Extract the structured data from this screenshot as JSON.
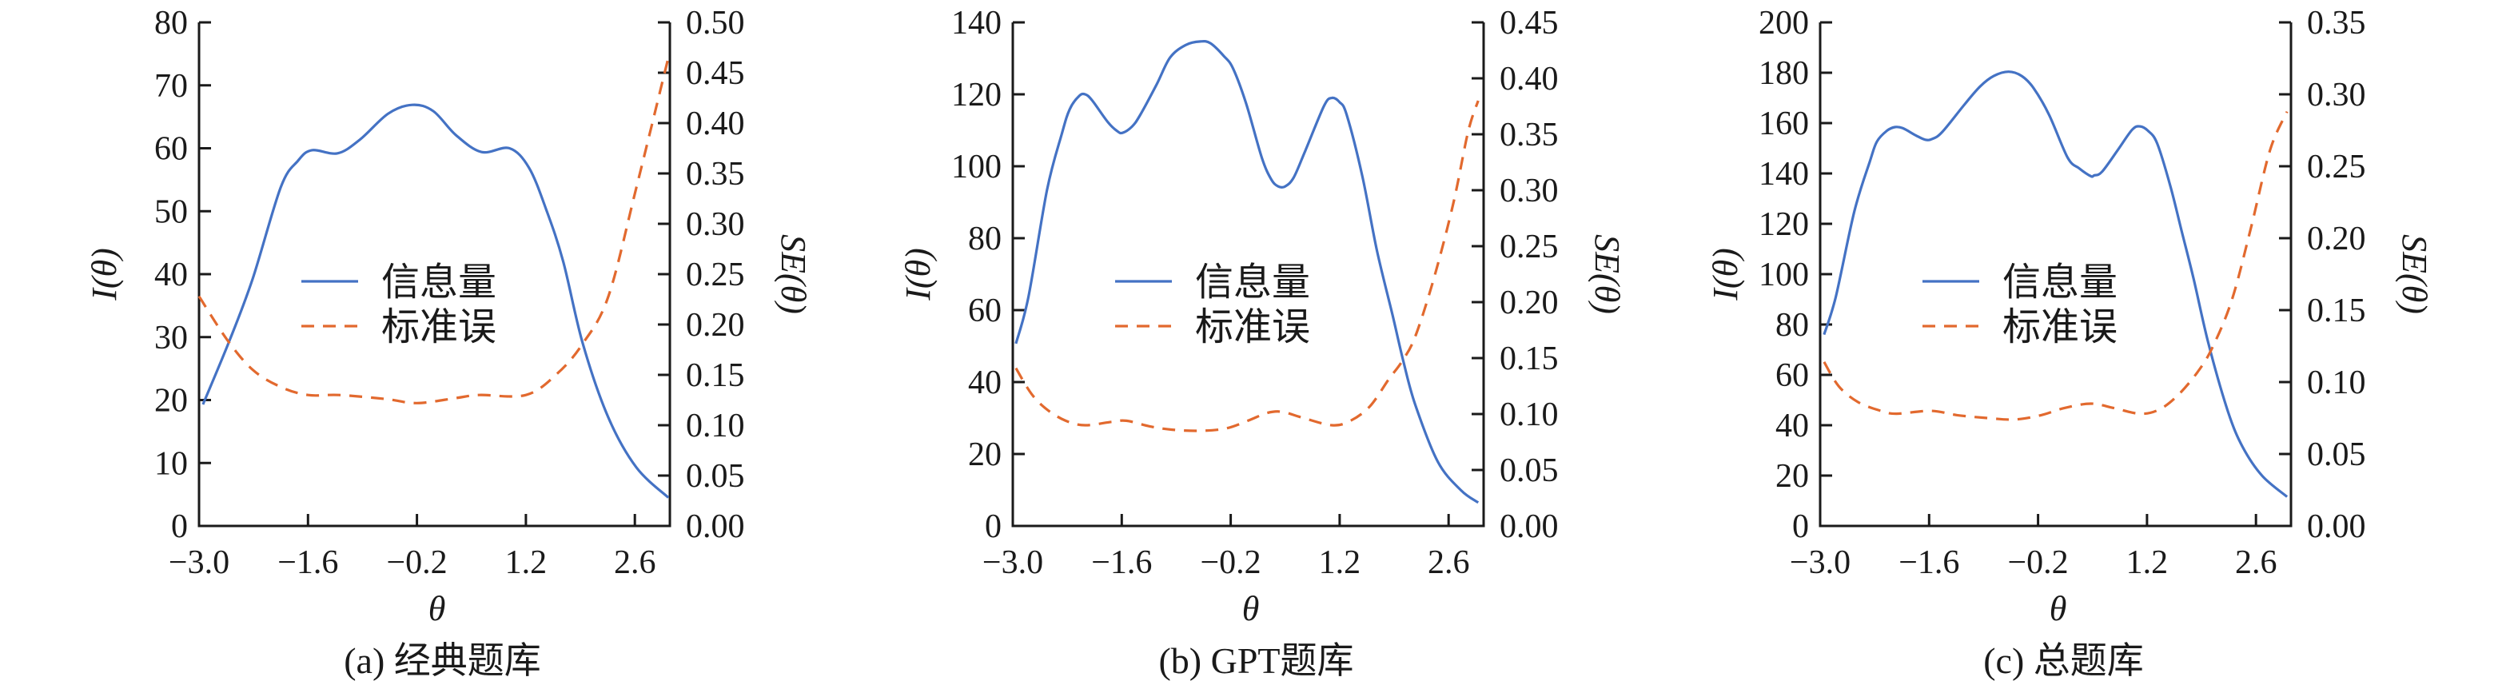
{
  "colors": {
    "info": "#4472C4",
    "se": "#E2692E",
    "axis": "#1a1a1a"
  },
  "chart_data": [
    {
      "type": "line",
      "caption": "(a) 经典题库",
      "xlabel": "θ",
      "ylabel": "I(θ)",
      "y2label": "SE(θ)",
      "xlim": [
        -3.0,
        3.05
      ],
      "ylim": [
        0,
        80
      ],
      "y2lim": [
        0,
        0.5
      ],
      "xticks": [
        -3.0,
        -1.6,
        -0.2,
        1.2,
        2.6
      ],
      "xtick_labels": [
        "−3.0",
        "−1.6",
        "−0.2",
        "1.2",
        "2.6"
      ],
      "yticks": [
        0,
        10,
        20,
        30,
        40,
        50,
        60,
        70,
        80
      ],
      "ytick_labels": [
        "0",
        "10",
        "20",
        "30",
        "40",
        "50",
        "60",
        "70",
        "80"
      ],
      "y2ticks": [
        0,
        0.05,
        0.1,
        0.15,
        0.2,
        0.25,
        0.3,
        0.35,
        0.4,
        0.45,
        0.5
      ],
      "y2tick_labels": [
        "0.00",
        "0.05",
        "0.10",
        "0.15",
        "0.20",
        "0.25",
        "0.30",
        "0.35",
        "0.40",
        "0.45",
        "0.50"
      ],
      "legend": {
        "placement": "center-left",
        "entries": [
          "信息量",
          "标准误"
        ]
      },
      "series": [
        {
          "name": "信息量",
          "axis": "left",
          "style": "solid",
          "x": [
            -2.95,
            -2.6,
            -2.31,
            -1.95,
            -1.73,
            -1.55,
            -1.22,
            -0.93,
            -0.57,
            -0.26,
            0.01,
            0.3,
            0.63,
            0.99,
            1.24,
            1.46,
            1.68,
            1.93,
            2.26,
            2.62,
            3.03
          ],
          "y": [
            19.3,
            29.7,
            39.3,
            53.8,
            58,
            59.7,
            59.2,
            61.4,
            65.5,
            66.9,
            65.9,
            62.1,
            59.4,
            60,
            56.9,
            50.3,
            42,
            29,
            17.2,
            9.3,
            4.5
          ]
        },
        {
          "name": "标准误",
          "axis": "right",
          "style": "dashed",
          "x": [
            -3.0,
            -2.64,
            -2.31,
            -1.95,
            -1.6,
            -1.2,
            -0.6,
            -0.2,
            0.3,
            0.6,
            1.2,
            1.6,
            1.93,
            2.26,
            2.62,
            3.03
          ],
          "y": [
            0.228,
            0.185,
            0.155,
            0.138,
            0.13,
            0.13,
            0.126,
            0.122,
            0.127,
            0.13,
            0.13,
            0.151,
            0.181,
            0.228,
            0.336,
            0.465
          ]
        }
      ]
    },
    {
      "type": "line",
      "caption": "(b) GPT题库",
      "xlabel": "θ",
      "ylabel": "I(θ)",
      "y2label": "SE(θ)",
      "xlim": [
        -3.0,
        3.05
      ],
      "ylim": [
        0,
        140
      ],
      "y2lim": [
        0,
        0.45
      ],
      "xticks": [
        -3.0,
        -1.6,
        -0.2,
        1.2,
        2.6
      ],
      "xtick_labels": [
        "−3.0",
        "−1.6",
        "−0.2",
        "1.2",
        "2.6"
      ],
      "yticks": [
        0,
        20,
        40,
        60,
        80,
        100,
        120,
        140
      ],
      "ytick_labels": [
        "0",
        "20",
        "40",
        "60",
        "80",
        "100",
        "120",
        "140"
      ],
      "y2ticks": [
        0,
        0.05,
        0.1,
        0.15,
        0.2,
        0.25,
        0.3,
        0.35,
        0.4,
        0.45
      ],
      "y2tick_labels": [
        "0.00",
        "0.05",
        "0.10",
        "0.15",
        "0.20",
        "0.25",
        "0.30",
        "0.35",
        "0.40",
        "0.45"
      ],
      "legend": {
        "placement": "center-left",
        "entries": [
          "信息量",
          "标准误"
        ]
      },
      "series": [
        {
          "name": "信息量",
          "axis": "left",
          "style": "solid",
          "x": [
            -2.96,
            -2.8,
            -2.56,
            -2.37,
            -2.27,
            -2.15,
            -2.07,
            -1.98,
            -1.78,
            -1.66,
            -1.59,
            -1.47,
            -1.37,
            -1.15,
            -0.98,
            -0.78,
            -0.59,
            -0.46,
            -0.29,
            -0.17,
            0.0,
            0.2,
            0.32,
            0.41,
            0.5,
            0.61,
            0.76,
            1.0,
            1.1,
            1.2,
            1.29,
            1.49,
            1.68,
            1.88,
            2.02,
            2.17,
            2.46,
            2.76,
            2.98
          ],
          "y": [
            50.7,
            63.6,
            93.4,
            109,
            115.8,
            119.5,
            120,
            118.3,
            112.3,
            109.8,
            109.3,
            111,
            114,
            122.8,
            130.2,
            133.7,
            134.7,
            134.2,
            130.7,
            127.2,
            117.3,
            102.4,
            96.4,
            94.4,
            94.4,
            96.9,
            104.4,
            116.8,
            119,
            117.8,
            114.3,
            97.4,
            76.5,
            58.6,
            45.7,
            33.8,
            17.9,
            9.9,
            6.5
          ]
        },
        {
          "name": "标准误",
          "axis": "right",
          "style": "dashed",
          "x": [
            -2.96,
            -2.76,
            -2.56,
            -2.32,
            -2.07,
            -1.73,
            -1.54,
            -1.24,
            -0.95,
            -0.61,
            -0.27,
            0.02,
            0.27,
            0.46,
            0.71,
            1.1,
            1.34,
            1.59,
            1.83,
            2.0,
            2.17,
            2.41,
            2.66,
            2.85,
            2.98
          ],
          "y": [
            0.141,
            0.118,
            0.104,
            0.094,
            0.09,
            0.093,
            0.094,
            0.089,
            0.086,
            0.085,
            0.087,
            0.094,
            0.101,
            0.102,
            0.097,
            0.09,
            0.094,
            0.107,
            0.131,
            0.147,
            0.169,
            0.221,
            0.288,
            0.352,
            0.38
          ]
        }
      ]
    },
    {
      "type": "line",
      "caption": "(c) 总题库",
      "xlabel": "θ",
      "ylabel": "I(θ)",
      "y2label": "SE(θ)",
      "xlim": [
        -3.0,
        3.05
      ],
      "ylim": [
        0,
        200
      ],
      "y2lim": [
        0,
        0.35
      ],
      "xticks": [
        -3.0,
        -1.6,
        -0.2,
        1.2,
        2.6
      ],
      "xtick_labels": [
        "−3.0",
        "−1.6",
        "−0.2",
        "1.2",
        "2.6"
      ],
      "yticks": [
        0,
        20,
        40,
        60,
        80,
        100,
        120,
        140,
        160,
        180,
        200
      ],
      "ytick_labels": [
        "0",
        "20",
        "40",
        "60",
        "80",
        "100",
        "120",
        "140",
        "160",
        "180",
        "200"
      ],
      "y2ticks": [
        0,
        0.05,
        0.1,
        0.15,
        0.2,
        0.25,
        0.3,
        0.35
      ],
      "y2tick_labels": [
        "0.00",
        "0.05",
        "0.10",
        "0.15",
        "0.20",
        "0.25",
        "0.30",
        "0.35"
      ],
      "legend": {
        "placement": "center-left",
        "entries": [
          "信息量",
          "标准误"
        ]
      },
      "series": [
        {
          "name": "信息量",
          "axis": "left",
          "style": "solid",
          "x": [
            -2.95,
            -2.8,
            -2.56,
            -2.36,
            -2.27,
            -2.14,
            -2.04,
            -1.94,
            -1.77,
            -1.65,
            -1.56,
            -1.43,
            -1.14,
            -0.94,
            -0.77,
            -0.58,
            -0.41,
            -0.26,
            -0.06,
            0.18,
            0.33,
            0.48,
            0.52,
            0.62,
            0.82,
            1.01,
            1.11,
            1.21,
            1.33,
            1.5,
            1.65,
            1.8,
            1.99,
            2.24,
            2.43,
            2.68,
            3.0
          ],
          "y": [
            76,
            90.9,
            125,
            144.9,
            152.7,
            157,
            158.4,
            158,
            155.1,
            153.4,
            153.7,
            156.5,
            167.6,
            174.7,
            178.7,
            180.4,
            178.7,
            174,
            163.4,
            146.3,
            142,
            138.9,
            139.2,
            140.6,
            149.1,
            157.4,
            158.7,
            157,
            152,
            135,
            116.5,
            98,
            72.4,
            45.5,
            31.3,
            19.9,
            11.6
          ]
        },
        {
          "name": "标准误",
          "axis": "right",
          "style": "dashed",
          "x": [
            -2.95,
            -2.76,
            -2.51,
            -2.22,
            -2.02,
            -1.58,
            -1.24,
            -0.85,
            -0.5,
            -0.16,
            0.14,
            0.48,
            0.77,
            1.11,
            1.36,
            1.6,
            1.85,
            2.04,
            2.29,
            2.53,
            2.78,
            3.0
          ],
          "y": [
            0.114,
            0.097,
            0.086,
            0.08,
            0.078,
            0.08,
            0.077,
            0.075,
            0.074,
            0.077,
            0.082,
            0.085,
            0.082,
            0.078,
            0.081,
            0.091,
            0.107,
            0.124,
            0.157,
            0.206,
            0.261,
            0.288
          ]
        }
      ]
    }
  ]
}
